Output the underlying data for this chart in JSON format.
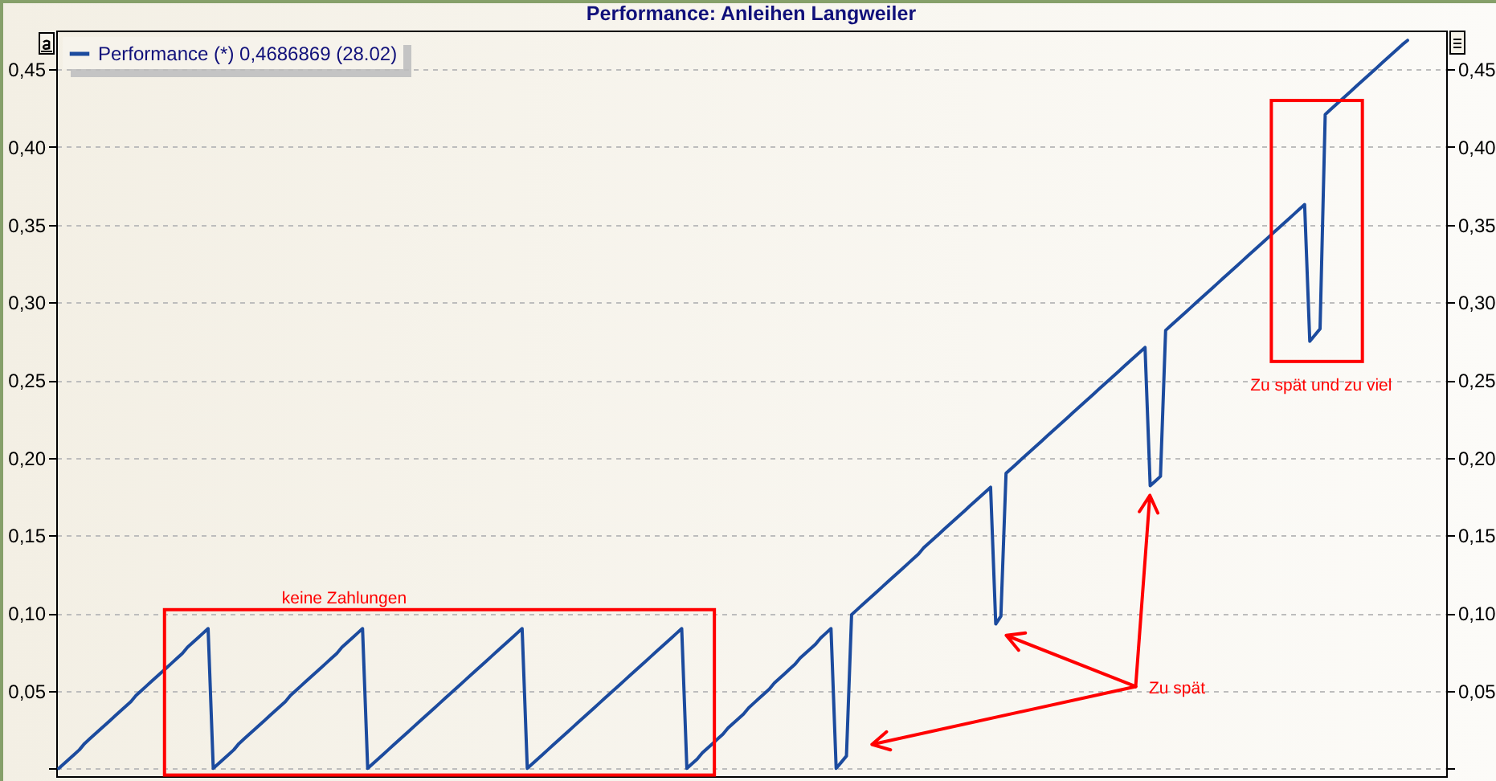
{
  "chart_data": {
    "type": "line",
    "title": "Performance: Anleihen Langweiler",
    "categories": [
      null,
      null,
      null,
      null,
      null,
      null,
      null,
      null,
      null,
      null,
      null,
      null,
      null,
      null,
      null,
      null,
      null,
      null,
      null,
      null,
      null,
      null,
      null,
      null,
      null,
      null,
      null,
      null,
      null,
      null,
      null,
      null,
      null,
      null,
      null,
      null,
      null,
      null,
      null,
      null,
      null,
      null,
      null,
      null,
      null,
      null,
      null,
      null,
      null,
      null,
      null,
      null,
      null,
      null,
      null,
      null,
      null,
      null,
      null,
      null,
      null,
      null,
      null,
      null,
      null,
      null,
      null,
      null,
      null,
      null,
      null,
      null,
      null,
      null,
      null,
      null,
      null,
      null,
      null,
      null,
      null,
      null,
      null,
      null,
      null,
      null,
      null,
      null,
      null,
      null,
      null,
      null,
      null,
      null,
      null,
      null,
      null,
      null,
      null,
      null,
      null,
      null,
      null,
      null,
      null,
      null,
      null,
      null,
      null,
      null,
      null,
      null,
      null,
      null,
      null,
      null,
      null,
      null,
      null,
      null,
      null,
      null,
      null,
      null,
      null,
      null,
      null,
      null,
      null,
      null,
      null,
      null,
      null,
      null,
      null,
      null,
      null,
      null,
      null,
      null,
      null,
      null,
      null,
      null,
      null,
      null,
      null,
      null,
      null,
      null,
      null,
      null,
      null,
      null,
      null,
      null,
      null,
      null,
      null,
      null,
      null,
      null,
      null,
      null,
      null,
      null,
      null,
      null,
      null,
      null,
      null,
      null,
      null,
      null,
      null,
      null,
      null,
      null,
      null,
      null,
      null,
      null,
      null,
      null,
      null,
      null,
      null,
      null,
      null,
      null,
      null,
      null,
      null,
      null,
      null,
      null,
      null,
      null,
      null,
      null,
      null,
      null,
      null,
      null,
      null,
      null,
      null,
      null,
      null,
      null,
      null,
      null,
      null,
      null,
      null,
      null,
      null,
      null,
      null,
      null,
      null,
      null,
      null,
      null,
      null,
      null,
      null,
      null,
      null,
      null,
      null,
      null,
      null,
      null,
      null,
      null,
      null,
      null,
      null,
      null,
      null,
      null,
      null,
      null,
      null,
      null,
      null,
      null,
      null,
      null,
      null,
      null,
      null,
      null,
      null,
      null,
      null,
      null,
      null,
      null,
      null,
      null,
      null,
      null,
      null,
      null,
      null,
      null,
      null,
      null
    ],
    "series": [
      {
        "name": "Performance (*) 0,4686869 (28.02)",
        "color": "#1c4b9e",
        "values": [
          0.0,
          0.003,
          0.006,
          0.009,
          0.012,
          0.016,
          0.019,
          0.022,
          0.025,
          0.028,
          0.031,
          0.034,
          0.037,
          0.04,
          0.043,
          0.047,
          0.05,
          0.053,
          0.056,
          0.059,
          0.062,
          0.065,
          0.068,
          0.071,
          0.074,
          0.078,
          0.081,
          0.084,
          0.087,
          0.09,
          0.0,
          0.003,
          0.006,
          0.009,
          0.012,
          0.016,
          0.019,
          0.022,
          0.025,
          0.028,
          0.031,
          0.034,
          0.037,
          0.04,
          0.043,
          0.047,
          0.05,
          0.053,
          0.056,
          0.059,
          0.062,
          0.065,
          0.068,
          0.071,
          0.074,
          0.078,
          0.081,
          0.084,
          0.087,
          0.09,
          0.0,
          0.003,
          0.006,
          0.009,
          0.012,
          0.015,
          0.018,
          0.021,
          0.024,
          0.027,
          0.03,
          0.033,
          0.036,
          0.039,
          0.042,
          0.045,
          0.048,
          0.051,
          0.054,
          0.057,
          0.06,
          0.063,
          0.066,
          0.069,
          0.072,
          0.075,
          0.078,
          0.081,
          0.084,
          0.087,
          0.09,
          0.0,
          0.003,
          0.006,
          0.009,
          0.012,
          0.015,
          0.018,
          0.021,
          0.024,
          0.027,
          0.03,
          0.033,
          0.036,
          0.039,
          0.042,
          0.045,
          0.048,
          0.051,
          0.054,
          0.057,
          0.06,
          0.063,
          0.066,
          0.069,
          0.072,
          0.075,
          0.078,
          0.081,
          0.084,
          0.087,
          0.09,
          0.0,
          0.003,
          0.006,
          0.01,
          0.013,
          0.016,
          0.019,
          0.022,
          0.026,
          0.029,
          0.032,
          0.035,
          0.039,
          0.042,
          0.045,
          0.048,
          0.051,
          0.055,
          0.058,
          0.061,
          0.064,
          0.067,
          0.071,
          0.074,
          0.077,
          0.08,
          0.084,
          0.087,
          0.09,
          0.0,
          0.004,
          0.008,
          0.099,
          0.102,
          0.105,
          0.108,
          0.111,
          0.114,
          0.117,
          0.12,
          0.123,
          0.126,
          0.129,
          0.132,
          0.135,
          0.138,
          0.142,
          0.145,
          0.148,
          0.151,
          0.154,
          0.157,
          0.16,
          0.163,
          0.166,
          0.169,
          0.172,
          0.175,
          0.178,
          0.181,
          0.093,
          0.098,
          0.19,
          0.193,
          0.196,
          0.199,
          0.202,
          0.205,
          0.208,
          0.211,
          0.214,
          0.217,
          0.22,
          0.223,
          0.226,
          0.229,
          0.232,
          0.235,
          0.238,
          0.241,
          0.244,
          0.247,
          0.25,
          0.253,
          0.256,
          0.259,
          0.262,
          0.265,
          0.268,
          0.271,
          0.182,
          0.185,
          0.188,
          0.282,
          0.285,
          0.288,
          0.291,
          0.294,
          0.297,
          0.3,
          0.303,
          0.306,
          0.309,
          0.312,
          0.315,
          0.318,
          0.321,
          0.324,
          0.327,
          0.33,
          0.333,
          0.336,
          0.339,
          0.342,
          0.345,
          0.348,
          0.351,
          0.354,
          0.357,
          0.36,
          0.363,
          0.275,
          0.279,
          0.283,
          0.421,
          0.424,
          0.427,
          0.43,
          0.433,
          0.436,
          0.439,
          0.442,
          0.445,
          0.448,
          0.451,
          0.454,
          0.457,
          0.46,
          0.463,
          0.466,
          0.4686869,
          null,
          null,
          null,
          null,
          null,
          null,
          null
        ]
      }
    ],
    "ylim": [
      -0.005,
      0.475
    ],
    "yticks": [
      {
        "value": 0,
        "label": null
      },
      {
        "value": 0.05,
        "label": "0,05"
      },
      {
        "value": 0.1,
        "label": "0,10"
      },
      {
        "value": 0.15,
        "label": "0,15"
      },
      {
        "value": 0.2,
        "label": "0,20"
      },
      {
        "value": 0.25,
        "label": "0,25"
      },
      {
        "value": 0.3,
        "label": "0,30"
      },
      {
        "value": 0.35,
        "label": "0,35"
      },
      {
        "value": 0.4,
        "label": "0,40"
      },
      {
        "value": 0.45,
        "label": "0,45"
      }
    ],
    "y2lim": [
      -0.005,
      0.475
    ],
    "y2ticks": [
      {
        "value": 0,
        "label": null
      },
      {
        "value": 0.05,
        "label": "0,05"
      },
      {
        "value": 0.1,
        "label": "0,10"
      },
      {
        "value": 0.15,
        "label": "0,15"
      },
      {
        "value": 0.2,
        "label": "0,20"
      },
      {
        "value": 0.25,
        "label": "0,25"
      },
      {
        "value": 0.3,
        "label": "0,30"
      },
      {
        "value": 0.35,
        "label": "0,35"
      },
      {
        "value": 0.4,
        "label": "0,40"
      },
      {
        "value": 0.45,
        "label": "0,45"
      }
    ],
    "grid": "y",
    "legend": "top left",
    "annotations": [
      "keine Zahlungen",
      "Zu spät",
      "Zu spät und zu viel"
    ]
  }
}
